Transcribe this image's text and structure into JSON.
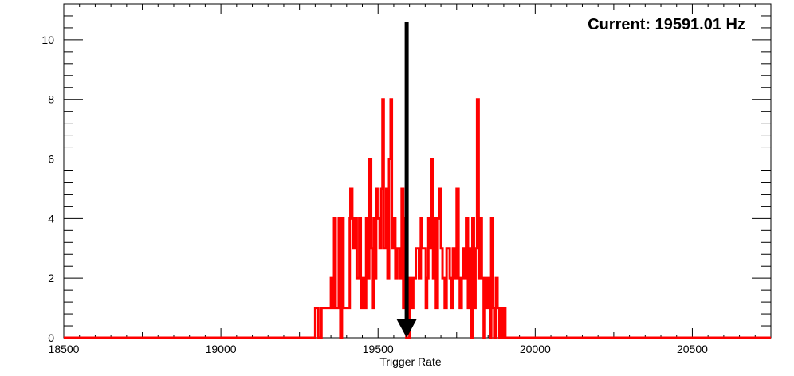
{
  "chart_data": {
    "type": "histogram",
    "title": "",
    "xlabel": "Trigger Rate",
    "ylabel": "",
    "xlim": [
      18500,
      20750
    ],
    "ylim": [
      0,
      11.2
    ],
    "x_ticks": [
      18500,
      19000,
      19500,
      20000,
      20500
    ],
    "y_ticks": [
      0,
      2,
      4,
      6,
      8,
      10
    ],
    "grid": false,
    "legend": "none",
    "series_color": "#ff0000",
    "marker_color": "#000000",
    "bins": [
      [
        18500,
        0
      ],
      [
        19300,
        1
      ],
      [
        19310,
        0
      ],
      [
        19320,
        1
      ],
      [
        19350,
        2
      ],
      [
        19355,
        1
      ],
      [
        19360,
        4
      ],
      [
        19365,
        1
      ],
      [
        19375,
        4
      ],
      [
        19380,
        0
      ],
      [
        19385,
        4
      ],
      [
        19390,
        1
      ],
      [
        19410,
        4
      ],
      [
        19412,
        5
      ],
      [
        19418,
        4
      ],
      [
        19422,
        3
      ],
      [
        19428,
        4
      ],
      [
        19432,
        2
      ],
      [
        19440,
        4
      ],
      [
        19445,
        1
      ],
      [
        19450,
        2
      ],
      [
        19458,
        1
      ],
      [
        19462,
        4
      ],
      [
        19468,
        2
      ],
      [
        19472,
        6
      ],
      [
        19478,
        3
      ],
      [
        19484,
        1
      ],
      [
        19486,
        4
      ],
      [
        19490,
        2
      ],
      [
        19494,
        5
      ],
      [
        19498,
        4
      ],
      [
        19505,
        3
      ],
      [
        19510,
        5
      ],
      [
        19514,
        8
      ],
      [
        19518,
        3
      ],
      [
        19526,
        5
      ],
      [
        19530,
        2
      ],
      [
        19535,
        6
      ],
      [
        19540,
        8
      ],
      [
        19544,
        3
      ],
      [
        19550,
        4
      ],
      [
        19555,
        2
      ],
      [
        19560,
        3
      ],
      [
        19568,
        2
      ],
      [
        19575,
        5
      ],
      [
        19580,
        1
      ],
      [
        19585,
        4
      ],
      [
        19590,
        0
      ],
      [
        19600,
        2
      ],
      [
        19605,
        1
      ],
      [
        19612,
        2
      ],
      [
        19620,
        3
      ],
      [
        19630,
        2
      ],
      [
        19636,
        4
      ],
      [
        19640,
        3
      ],
      [
        19652,
        1
      ],
      [
        19656,
        2
      ],
      [
        19660,
        4
      ],
      [
        19665,
        3
      ],
      [
        19670,
        6
      ],
      [
        19675,
        2
      ],
      [
        19680,
        4
      ],
      [
        19684,
        1
      ],
      [
        19690,
        4
      ],
      [
        19696,
        5
      ],
      [
        19700,
        3
      ],
      [
        19705,
        2
      ],
      [
        19712,
        1
      ],
      [
        19718,
        3
      ],
      [
        19728,
        2
      ],
      [
        19734,
        1
      ],
      [
        19738,
        3
      ],
      [
        19744,
        2
      ],
      [
        19750,
        5
      ],
      [
        19756,
        2
      ],
      [
        19760,
        1
      ],
      [
        19766,
        2
      ],
      [
        19770,
        3
      ],
      [
        19776,
        2
      ],
      [
        19780,
        4
      ],
      [
        19786,
        1
      ],
      [
        19790,
        3
      ],
      [
        19796,
        0
      ],
      [
        19800,
        4
      ],
      [
        19805,
        1
      ],
      [
        19810,
        3
      ],
      [
        19815,
        8
      ],
      [
        19820,
        2
      ],
      [
        19826,
        4
      ],
      [
        19830,
        2
      ],
      [
        19836,
        0
      ],
      [
        19840,
        2
      ],
      [
        19845,
        1
      ],
      [
        19850,
        2
      ],
      [
        19856,
        0
      ],
      [
        19860,
        4
      ],
      [
        19866,
        1
      ],
      [
        19872,
        0
      ],
      [
        19875,
        2
      ],
      [
        19880,
        1
      ],
      [
        19886,
        0
      ],
      [
        19890,
        1
      ],
      [
        19895,
        0
      ],
      [
        19900,
        1
      ],
      [
        19905,
        0
      ],
      [
        20750,
        0
      ]
    ],
    "annotations": [
      {
        "text": "Current: 19591.01 Hz",
        "position": "top-right"
      }
    ],
    "marker": {
      "type": "arrow-down",
      "x": 19591.01,
      "y_from": 10.6,
      "y_to": 0
    }
  }
}
